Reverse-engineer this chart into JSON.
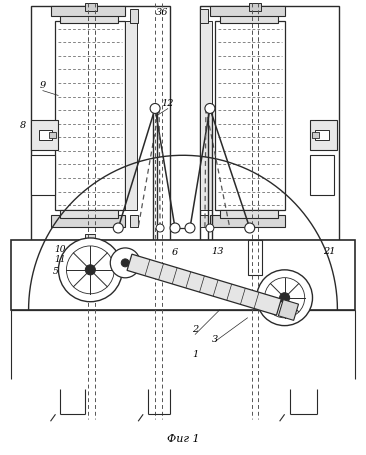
{
  "bg_color": "#ffffff",
  "line_color": "#2a2a2a",
  "dashed_color": "#555555",
  "fig_label": "Фиг 1",
  "figsize": [
    3.66,
    4.55
  ],
  "dpi": 100
}
